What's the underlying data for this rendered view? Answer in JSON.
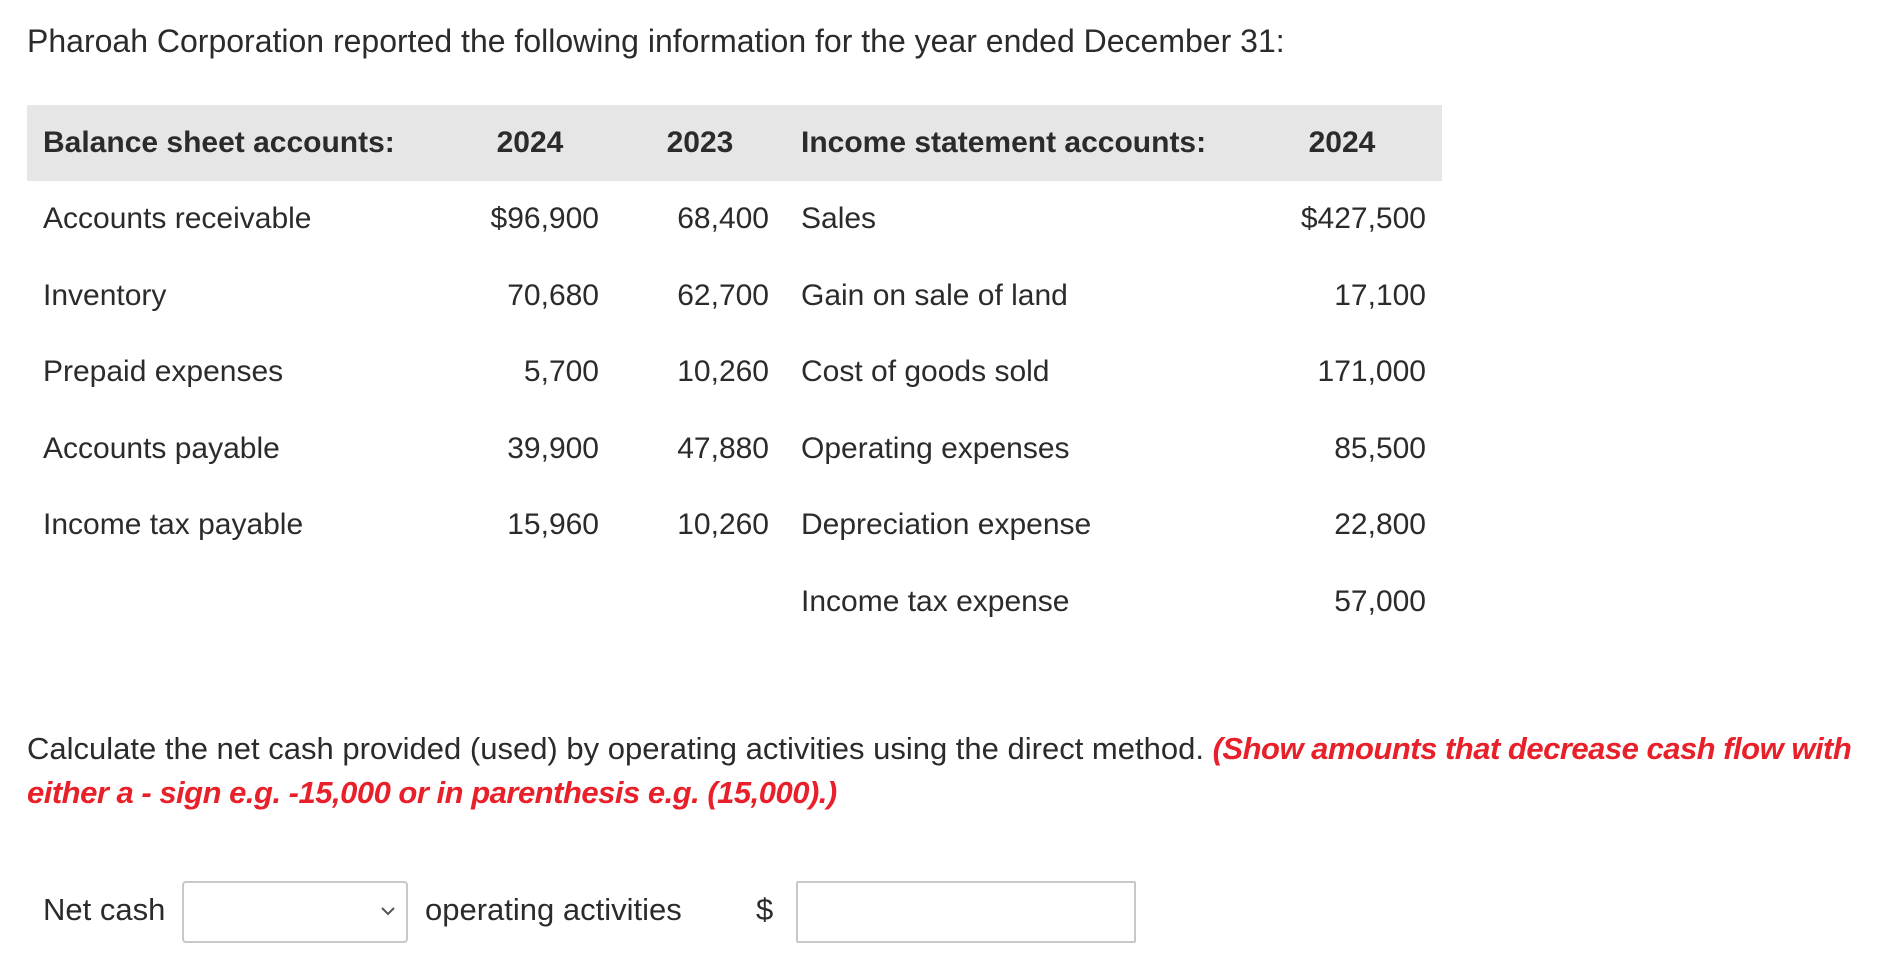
{
  "intro": "Pharoah Corporation reported the following information for the year ended December 31:",
  "table": {
    "headers": [
      "Balance sheet accounts:",
      "2024",
      "2023",
      "Income statement accounts:",
      "2024"
    ],
    "rows": [
      [
        "Accounts receivable",
        "$96,900",
        "68,400",
        "Sales",
        "$427,500"
      ],
      [
        "Inventory",
        "70,680",
        "62,700",
        "Gain on sale of land",
        "17,100"
      ],
      [
        "Prepaid expenses",
        "5,700",
        "10,260",
        "Cost of goods sold",
        "171,000"
      ],
      [
        "Accounts payable",
        "39,900",
        "47,880",
        "Operating expenses",
        "85,500"
      ],
      [
        "Income tax payable",
        "15,960",
        "10,260",
        "Depreciation expense",
        "22,800"
      ],
      [
        "",
        "",
        "",
        "Income tax expense",
        "57,000"
      ]
    ]
  },
  "question": {
    "text": "Calculate the net cash provided (used) by operating activities using the direct method.",
    "instruction": "(Show amounts that decrease cash flow with either a - sign e.g. -15,000 or in parenthesis e.g. (15,000).)"
  },
  "answer": {
    "prefix": "Net cash",
    "select_value": "",
    "suffix": "operating activities",
    "currency": "$",
    "amount_value": ""
  },
  "icons": {
    "dropdown": "chevron-down-icon"
  }
}
